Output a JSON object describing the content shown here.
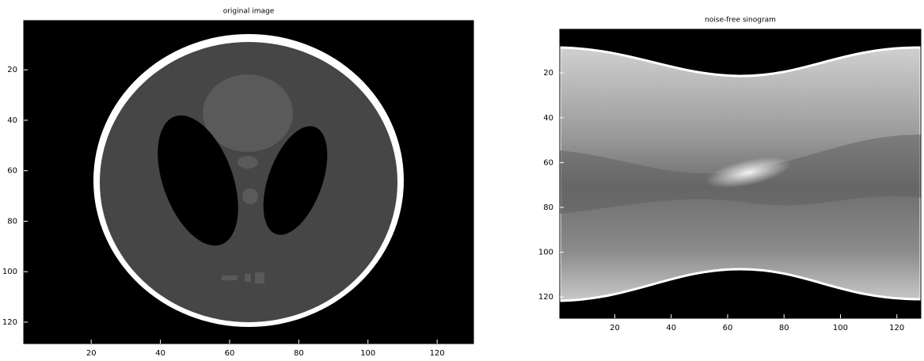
{
  "chart_data": [
    {
      "type": "image",
      "title": "original image",
      "xlim": [
        0.5,
        130.5
      ],
      "ylim": [
        0.5,
        128.5
      ],
      "xticks": [
        20,
        40,
        60,
        80,
        100,
        120
      ],
      "yticks": [
        20,
        40,
        60,
        80,
        100,
        120
      ]
    },
    {
      "type": "image",
      "title": "noise-free sinogram",
      "xlim": [
        0.5,
        128.5
      ],
      "ylim": [
        0.5,
        129.5
      ],
      "xticks": [
        20,
        40,
        60,
        80,
        100,
        120
      ],
      "yticks": [
        20,
        40,
        60,
        80,
        100,
        120
      ]
    }
  ]
}
